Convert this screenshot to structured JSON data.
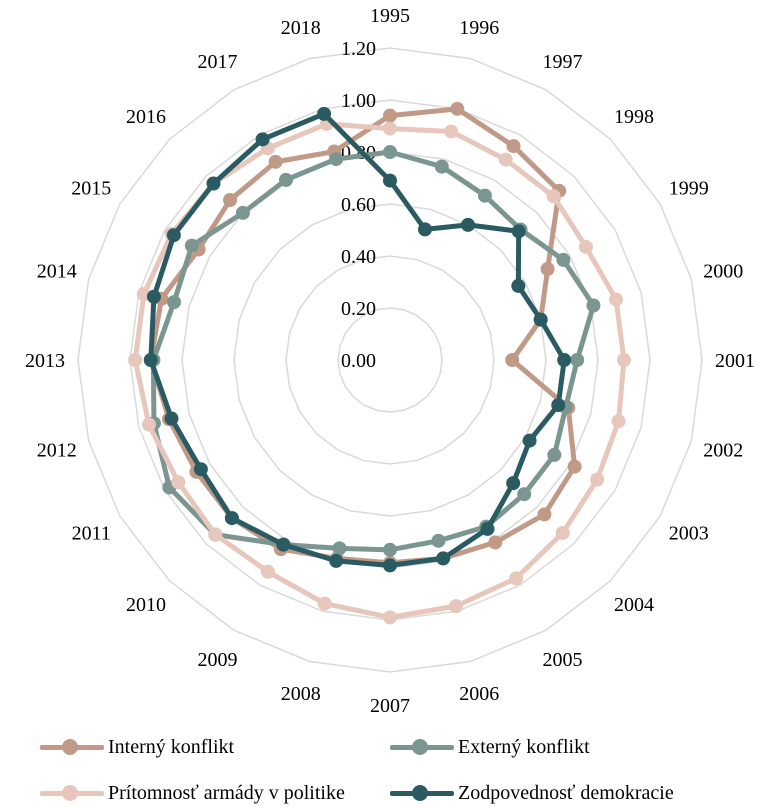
{
  "chart_data": {
    "type": "radar",
    "title": "",
    "categories": [
      "1995",
      "1996",
      "1997",
      "1998",
      "1999",
      "2000",
      "2001",
      "2002",
      "2003",
      "2004",
      "2005",
      "2006",
      "2007",
      "2008",
      "2009",
      "2010",
      "2011",
      "2012",
      "2013",
      "2014",
      "2015",
      "2016",
      "2017",
      "2018"
    ],
    "rlim": [
      0,
      1.2
    ],
    "rticks": [
      "0.00",
      "0.20",
      "0.40",
      "0.60",
      "0.80",
      "1.00",
      "1.20"
    ],
    "grid": true,
    "legend_position": "bottom",
    "series": [
      {
        "name": "Interný konflikt",
        "color": "#c09a87",
        "values": [
          0.94,
          1.0,
          0.95,
          0.92,
          0.7,
          0.6,
          0.47,
          0.71,
          0.82,
          0.84,
          0.81,
          0.79,
          0.78,
          0.79,
          0.84,
          0.86,
          0.86,
          0.88,
          0.92,
          0.91,
          0.85,
          0.87,
          0.88,
          0.83
        ]
      },
      {
        "name": "Externý konflikt",
        "color": "#7b9690",
        "values": [
          0.8,
          0.77,
          0.73,
          0.71,
          0.77,
          0.81,
          0.72,
          0.7,
          0.73,
          0.73,
          0.74,
          0.72,
          0.73,
          0.75,
          0.82,
          0.95,
          0.98,
          0.94,
          0.91,
          0.86,
          0.88,
          0.8,
          0.8,
          0.8
        ]
      },
      {
        "name": "Prítomnosť armády v politike",
        "color": "#e7c6bc",
        "values": [
          0.89,
          0.91,
          0.89,
          0.89,
          0.87,
          0.9,
          0.9,
          0.91,
          0.92,
          0.94,
          0.97,
          0.98,
          0.99,
          0.97,
          0.94,
          0.95,
          0.94,
          0.96,
          0.98,
          0.98,
          0.97,
          0.96,
          0.94,
          0.94
        ]
      },
      {
        "name": "Zodpovednosť demokracie",
        "color": "#2a5b62",
        "values": [
          0.69,
          0.52,
          0.6,
          0.7,
          0.57,
          0.6,
          0.67,
          0.67,
          0.62,
          0.67,
          0.75,
          0.79,
          0.79,
          0.8,
          0.82,
          0.86,
          0.84,
          0.87,
          0.92,
          0.94,
          0.96,
          0.96,
          0.98,
          0.98
        ]
      }
    ]
  }
}
